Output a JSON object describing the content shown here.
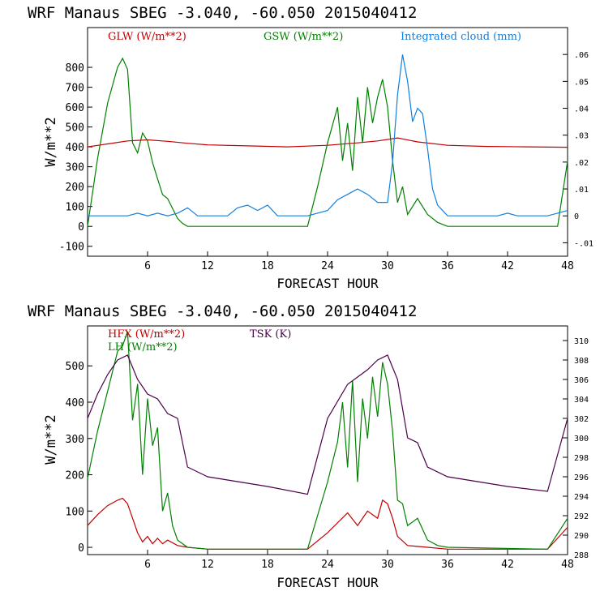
{
  "chart_data": [
    {
      "type": "line",
      "title": "WRF   Manaus SBEG   -3.040, -60.050  2015040412",
      "xlabel": "FORECAST HOUR",
      "ylabel": "W/m**2",
      "xlim": [
        0,
        48
      ],
      "ylim": [
        -150,
        1000
      ],
      "y2lim": [
        -0.015,
        0.07
      ],
      "xticks": [
        6,
        12,
        18,
        24,
        30,
        36,
        42,
        48
      ],
      "yticks": [
        -100,
        0,
        100,
        200,
        300,
        400,
        500,
        600,
        700,
        800
      ],
      "y2ticks": [
        -0.01,
        0,
        0.01,
        0.02,
        0.03,
        0.04,
        0.05,
        0.06
      ],
      "y2ticklabels": [
        "-.01",
        "0",
        ".01",
        ".02",
        ".03",
        ".04",
        ".05",
        ".06"
      ],
      "series": [
        {
          "name": "GLW (W/m**2)",
          "color": "#c00000",
          "axis": "left",
          "x": [
            0,
            2,
            4,
            6,
            8,
            10,
            12,
            16,
            20,
            24,
            27,
            29,
            31,
            33,
            36,
            40,
            44,
            48
          ],
          "y": [
            400,
            415,
            430,
            435,
            428,
            418,
            410,
            405,
            400,
            408,
            420,
            430,
            445,
            425,
            408,
            402,
            400,
            398
          ]
        },
        {
          "name": "GSW (W/m**2)",
          "color": "#008000",
          "axis": "left",
          "x": [
            0,
            1,
            2,
            3,
            3.5,
            4,
            4.5,
            5,
            5.5,
            6,
            6.5,
            7,
            7.5,
            8,
            8.5,
            9,
            9.5,
            10,
            22,
            23,
            24,
            25,
            25.5,
            26,
            26.5,
            27,
            27.5,
            28,
            28.5,
            29,
            29.5,
            30,
            30.5,
            31,
            31.5,
            32,
            33,
            34,
            35,
            36,
            47,
            48
          ],
          "y": [
            0,
            340,
            620,
            800,
            845,
            790,
            420,
            370,
            470,
            430,
            320,
            240,
            160,
            140,
            90,
            40,
            15,
            0,
            0,
            200,
            420,
            600,
            330,
            520,
            280,
            650,
            420,
            700,
            520,
            650,
            740,
            600,
            330,
            120,
            200,
            60,
            140,
            60,
            20,
            0,
            0,
            330
          ]
        },
        {
          "name": "Integrated cloud (mm)",
          "color": "#1080e0",
          "axis": "right",
          "x": [
            0,
            4,
            5,
            6,
            7,
            8,
            9,
            10,
            11,
            14,
            15,
            16,
            17,
            18,
            19,
            22,
            24,
            25,
            26,
            27,
            28,
            29,
            30,
            30.5,
            31,
            31.5,
            32,
            32.5,
            33,
            33.5,
            34,
            34.5,
            35,
            36,
            41,
            42,
            43,
            46,
            47,
            48
          ],
          "y": [
            0,
            0,
            0.001,
            0,
            0.001,
            0,
            0.001,
            0.003,
            0,
            0,
            0.003,
            0.004,
            0.002,
            0.004,
            0,
            0,
            0.002,
            0.006,
            0.008,
            0.01,
            0.008,
            0.005,
            0.005,
            0.02,
            0.045,
            0.06,
            0.05,
            0.035,
            0.04,
            0.038,
            0.025,
            0.01,
            0.004,
            0,
            0,
            0.001,
            0,
            0,
            0.001,
            0.002
          ]
        }
      ]
    },
    {
      "type": "line",
      "title": "WRF   Manaus SBEG   -3.040, -60.050  2015040412",
      "xlabel": "FORECAST HOUR",
      "ylabel": "W/m**2",
      "xlim": [
        0,
        48
      ],
      "ylim": [
        -20,
        610
      ],
      "y2lim": [
        288,
        311.5
      ],
      "xticks": [
        6,
        12,
        18,
        24,
        30,
        36,
        42,
        48
      ],
      "yticks": [
        0,
        100,
        200,
        300,
        400,
        500
      ],
      "y2ticks": [
        288,
        290,
        292,
        294,
        296,
        298,
        300,
        302,
        304,
        306,
        308,
        310
      ],
      "y2ticklabels": [
        "288",
        "290",
        "292",
        "294",
        "296",
        "298",
        "300",
        "302",
        "304",
        "306",
        "308",
        "310"
      ],
      "series": [
        {
          "name": "HFX (W/m**2)",
          "color": "#c00000",
          "axis": "left",
          "x": [
            0,
            1,
            2,
            3,
            3.5,
            4,
            4.5,
            5,
            5.5,
            6,
            6.5,
            7,
            7.5,
            8,
            9,
            10,
            12,
            16,
            20,
            22,
            24,
            26,
            27,
            28,
            29,
            29.5,
            30,
            30.5,
            31,
            32,
            34,
            36,
            42,
            46,
            48
          ],
          "y": [
            60,
            90,
            115,
            130,
            135,
            120,
            80,
            40,
            15,
            30,
            10,
            25,
            10,
            20,
            5,
            0,
            -5,
            -5,
            -5,
            -5,
            40,
            95,
            60,
            100,
            80,
            130,
            120,
            80,
            30,
            5,
            0,
            -5,
            -5,
            -5,
            55
          ]
        },
        {
          "name": "LH  (W/m**2)",
          "color": "#008000",
          "axis": "left",
          "x": [
            0,
            1,
            2,
            3,
            3.5,
            4,
            4.5,
            5,
            5.5,
            6,
            6.5,
            7,
            7.5,
            8,
            8.5,
            9,
            9.5,
            10,
            12,
            18,
            22,
            24,
            25,
            25.5,
            26,
            26.5,
            27,
            27.5,
            28,
            28.5,
            29,
            29.5,
            30,
            30.5,
            31,
            31.5,
            32,
            33,
            34,
            35,
            36,
            46,
            48
          ],
          "y": [
            190,
            320,
            430,
            540,
            555,
            595,
            350,
            450,
            200,
            410,
            280,
            330,
            100,
            150,
            60,
            20,
            10,
            0,
            -5,
            -5,
            -5,
            180,
            290,
            400,
            220,
            460,
            180,
            410,
            300,
            470,
            360,
            510,
            450,
            320,
            130,
            120,
            60,
            80,
            20,
            5,
            0,
            -5,
            80
          ]
        },
        {
          "name": "TSK (K)",
          "color": "#4b0049",
          "axis": "right",
          "x": [
            0,
            1,
            2,
            3,
            4,
            5,
            6,
            7,
            8,
            9,
            10,
            12,
            18,
            22,
            24,
            26,
            28,
            29,
            30,
            31,
            32,
            33,
            34,
            36,
            42,
            46,
            48
          ],
          "y": [
            302,
            304.5,
            306.5,
            308,
            308.5,
            306,
            304.5,
            304,
            302.5,
            302,
            297,
            296,
            295,
            294.2,
            302,
            305.5,
            307,
            308,
            308.5,
            306,
            300,
            299.5,
            297,
            296,
            295,
            294.5,
            302
          ]
        }
      ]
    }
  ]
}
